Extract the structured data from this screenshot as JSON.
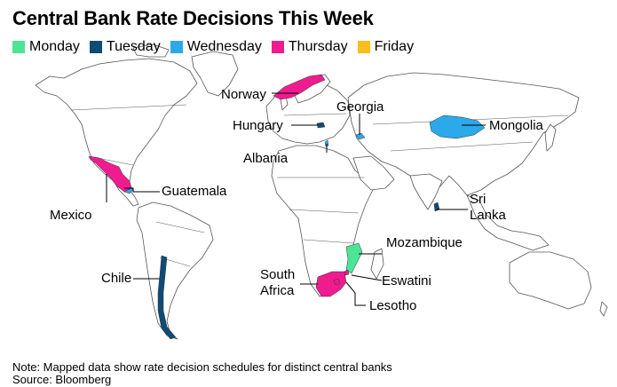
{
  "title": "Central Bank Rate Decisions This Week",
  "colors": {
    "Monday": "#4ce597",
    "Tuesday": "#0f4c75",
    "Wednesday": "#2ba9ea",
    "Thursday": "#ee1c8f",
    "Friday": "#f9be1c",
    "land": "#ffffff",
    "border": "#555555"
  },
  "legend": [
    {
      "day": "Monday",
      "label": "Monday"
    },
    {
      "day": "Tuesday",
      "label": "Tuesday"
    },
    {
      "day": "Wednesday",
      "label": "Wednesday"
    },
    {
      "day": "Thursday",
      "label": "Thursday"
    },
    {
      "day": "Friday",
      "label": "Friday"
    }
  ],
  "countries": [
    {
      "key": "norway",
      "name": "Norway",
      "day": "Thursday"
    },
    {
      "key": "georgia",
      "name": "Georgia",
      "day": "Wednesday"
    },
    {
      "key": "hungary",
      "name": "Hungary",
      "day": "Tuesday"
    },
    {
      "key": "mongolia",
      "name": "Mongolia",
      "day": "Wednesday"
    },
    {
      "key": "albania",
      "name": "Albania",
      "day": "Wednesday"
    },
    {
      "key": "guatemala",
      "name": "Guatemala",
      "day": "Wednesday"
    },
    {
      "key": "mexico",
      "name": "Mexico",
      "day": "Thursday"
    },
    {
      "key": "sri_lanka",
      "name": "Sri\nLanka",
      "day": "Tuesday"
    },
    {
      "key": "mozambique",
      "name": "Mozambique",
      "day": "Monday"
    },
    {
      "key": "chile",
      "name": "Chile",
      "day": "Tuesday"
    },
    {
      "key": "south_africa",
      "name": "South\nAfrica",
      "day": "Thursday"
    },
    {
      "key": "eswatini",
      "name": "Eswatini",
      "day": "Thursday"
    },
    {
      "key": "lesotho",
      "name": "Lesotho",
      "day": "Thursday"
    }
  ],
  "note": "Note: Mapped data show rate decision schedules for distinct central banks",
  "source": "Source: Bloomberg"
}
